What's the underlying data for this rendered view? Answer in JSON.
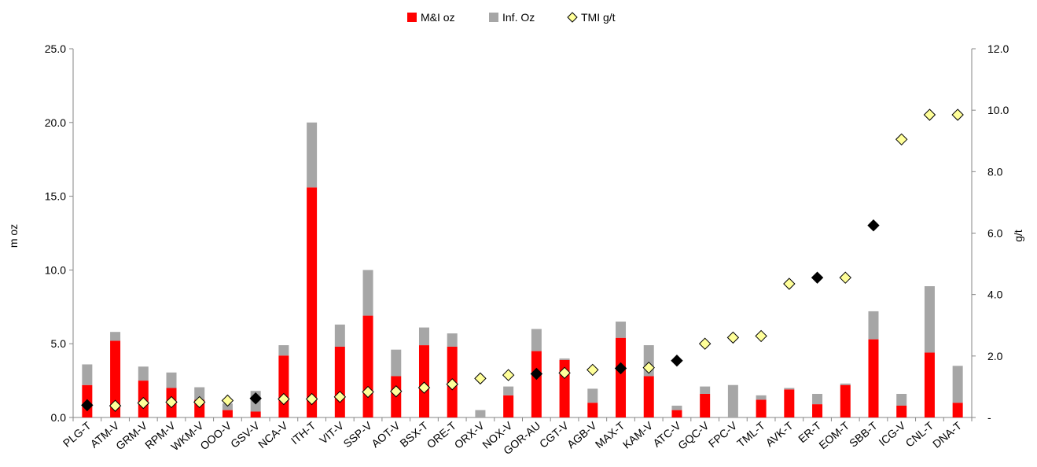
{
  "chart_data": {
    "type": "bar",
    "stacked": true,
    "categories": [
      "PLG-T",
      "ATM-V",
      "GRM-V",
      "RPM-V",
      "WKM-V",
      "OOO-V",
      "GSV-V",
      "NCA-V",
      "ITH-T",
      "VIT-V",
      "SSP-V",
      "AOT-V",
      "BSX-T",
      "ORE-T",
      "ORX-V",
      "NOX-V",
      "GOR-AU",
      "CGT-V",
      "AGB-V",
      "MAX-T",
      "KAM-V",
      "ATC-V",
      "GQC-V",
      "FPC-V",
      "TML-T",
      "AVK-T",
      "ER-T",
      "EOM-T",
      "SBB-T",
      "ICG-V",
      "CNL-T",
      "DNA-T"
    ],
    "series": [
      {
        "name": "M&I oz",
        "color": "#ff0000",
        "axis": "left",
        "values": [
          2.2,
          5.2,
          2.5,
          2.0,
          1.2,
          0.5,
          0.4,
          4.2,
          15.6,
          4.8,
          6.9,
          2.8,
          4.9,
          4.8,
          0.0,
          1.5,
          4.5,
          3.9,
          1.0,
          5.4,
          2.8,
          0.5,
          1.6,
          0.0,
          1.2,
          1.9,
          0.9,
          2.2,
          5.3,
          0.8,
          4.4,
          1.0
        ]
      },
      {
        "name": "Inf. Oz",
        "color": "#a6a6a6",
        "axis": "left",
        "values": [
          1.4,
          0.6,
          0.95,
          1.05,
          0.85,
          0.45,
          1.4,
          0.7,
          4.4,
          1.5,
          3.1,
          1.8,
          1.2,
          0.9,
          0.5,
          0.6,
          1.5,
          0.1,
          0.95,
          1.1,
          2.1,
          0.3,
          0.5,
          2.2,
          0.3,
          0.1,
          0.7,
          0.1,
          1.9,
          0.8,
          4.5,
          2.5
        ]
      },
      {
        "name": "TMI g/t",
        "type": "scatter",
        "axis": "right",
        "color": "#ffff99",
        "values": [
          0.4,
          0.38,
          0.47,
          0.5,
          0.5,
          0.55,
          0.62,
          0.6,
          0.6,
          0.67,
          0.83,
          0.85,
          0.97,
          1.08,
          1.27,
          1.38,
          1.42,
          1.45,
          1.55,
          1.6,
          1.62,
          1.85,
          2.4,
          2.6,
          2.65,
          4.35,
          4.55,
          4.55,
          6.25,
          9.05,
          9.85,
          9.85
        ],
        "highlighted": [
          true,
          false,
          false,
          false,
          false,
          false,
          true,
          false,
          false,
          false,
          false,
          false,
          false,
          false,
          false,
          false,
          true,
          false,
          false,
          true,
          false,
          true,
          false,
          false,
          false,
          false,
          true,
          false,
          true,
          false,
          false,
          false
        ]
      }
    ],
    "legend": [
      {
        "label": "M&I oz",
        "marker": "square",
        "color": "#ff0000"
      },
      {
        "label": "Inf. Oz",
        "marker": "square",
        "color": "#a6a6a6"
      },
      {
        "label": "TMI g/t",
        "marker": "diamond",
        "color": "#ffff99"
      }
    ],
    "legend_position": "top",
    "ylabel": "m oz",
    "y2label": "g/t",
    "ylim": [
      0,
      25
    ],
    "yticks": [
      "0.0",
      "5.0",
      "10.0",
      "15.0",
      "20.0",
      "25.0"
    ],
    "y2lim": [
      0,
      12
    ],
    "y2ticks": [
      "-",
      "2.0",
      "4.0",
      "6.0",
      "8.0",
      "10.0",
      "12.0"
    ],
    "grid": false
  }
}
